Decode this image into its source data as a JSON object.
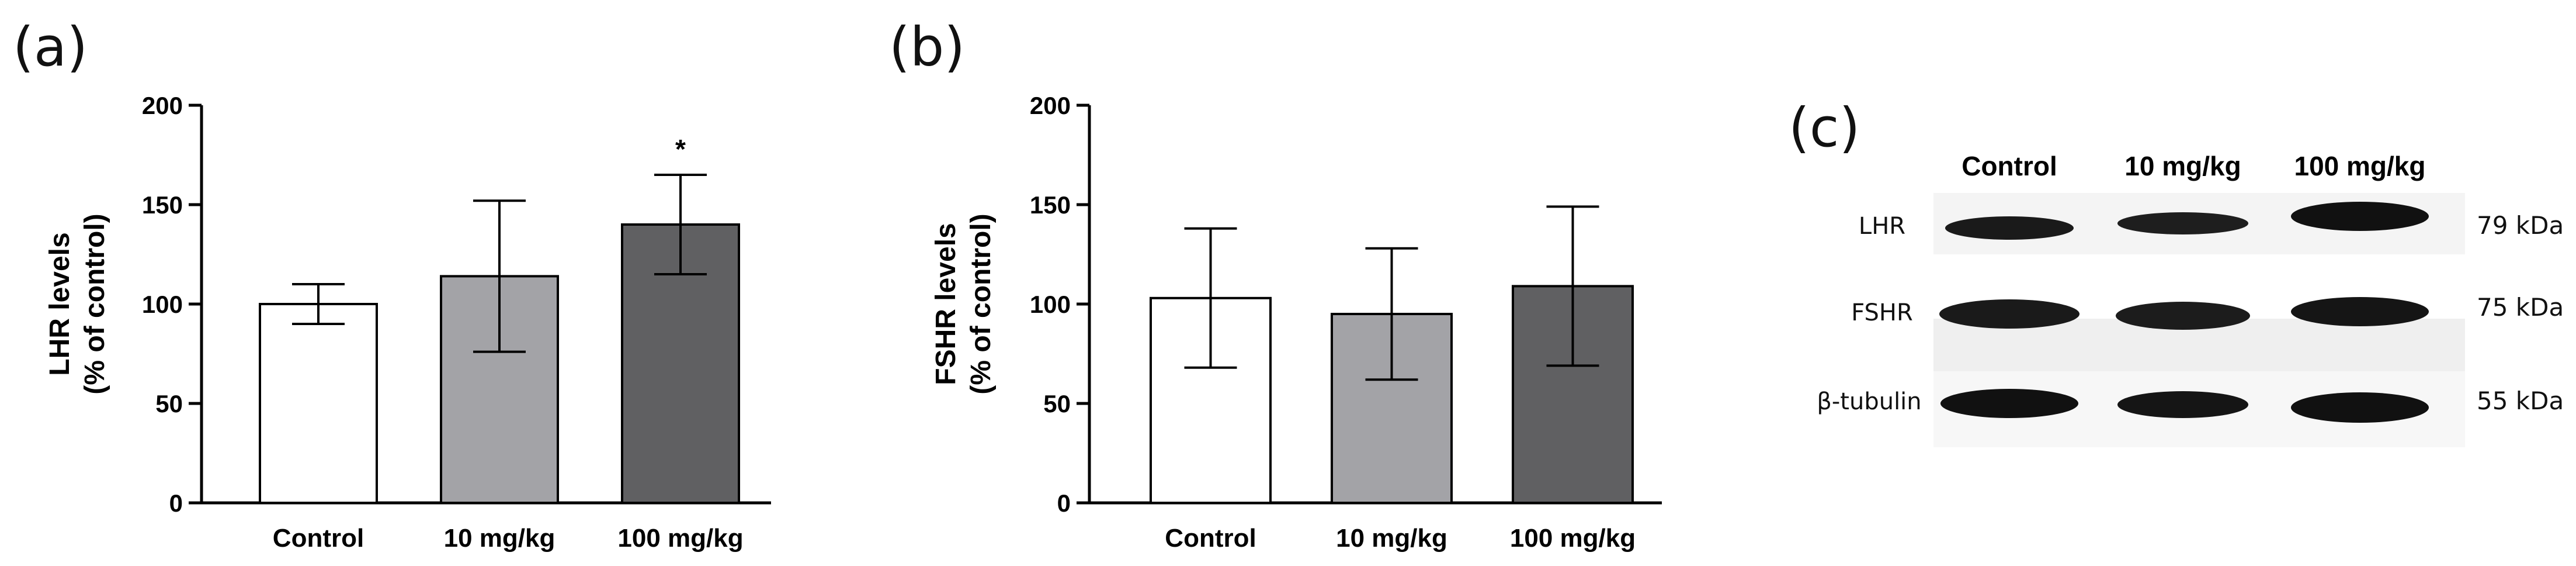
{
  "colors": {
    "control": "#ffffff",
    "low_dose": "#a3a3a7",
    "high_dose": "#606062",
    "axis": "#000000"
  },
  "panel_letters": {
    "a": "(a)",
    "b": "(b)",
    "c": "(c)"
  },
  "chart_data": [
    {
      "panel": "a",
      "type": "bar",
      "ylabel_line1": "LHR levels",
      "ylabel_line2": "(% of control)",
      "xlabel": "",
      "ylim": [
        0,
        200
      ],
      "yticks": [
        0,
        50,
        100,
        150,
        200
      ],
      "grid": false,
      "categories": [
        "Control",
        "10 mg/kg",
        "100 mg/kg"
      ],
      "values": [
        100,
        114,
        140
      ],
      "error": [
        10,
        38,
        25
      ],
      "significance": [
        "",
        "",
        "*"
      ]
    },
    {
      "panel": "b",
      "type": "bar",
      "ylabel_line1": "FSHR levels",
      "ylabel_line2": "(% of control)",
      "xlabel": "",
      "ylim": [
        0,
        200
      ],
      "yticks": [
        0,
        50,
        100,
        150,
        200
      ],
      "grid": false,
      "categories": [
        "Control",
        "10 mg/kg",
        "100 mg/kg"
      ],
      "values": [
        103,
        95,
        109
      ],
      "error": [
        35,
        33,
        40
      ],
      "significance": [
        "",
        "",
        ""
      ]
    }
  ],
  "western_blot": {
    "headers": [
      "Control",
      "10 mg/kg",
      "100 mg/kg"
    ],
    "rows": [
      {
        "protein": "LHR",
        "molecular_weight": "79 kDa",
        "intensity": [
          0.85,
          0.8,
          1.0
        ]
      },
      {
        "protein": "FSHR",
        "molecular_weight": "75 kDa",
        "intensity": [
          0.9,
          0.88,
          0.95
        ]
      },
      {
        "protein": "β-tubulin",
        "molecular_weight": "55 kDa",
        "intensity": [
          1.0,
          0.95,
          1.0
        ]
      }
    ]
  }
}
